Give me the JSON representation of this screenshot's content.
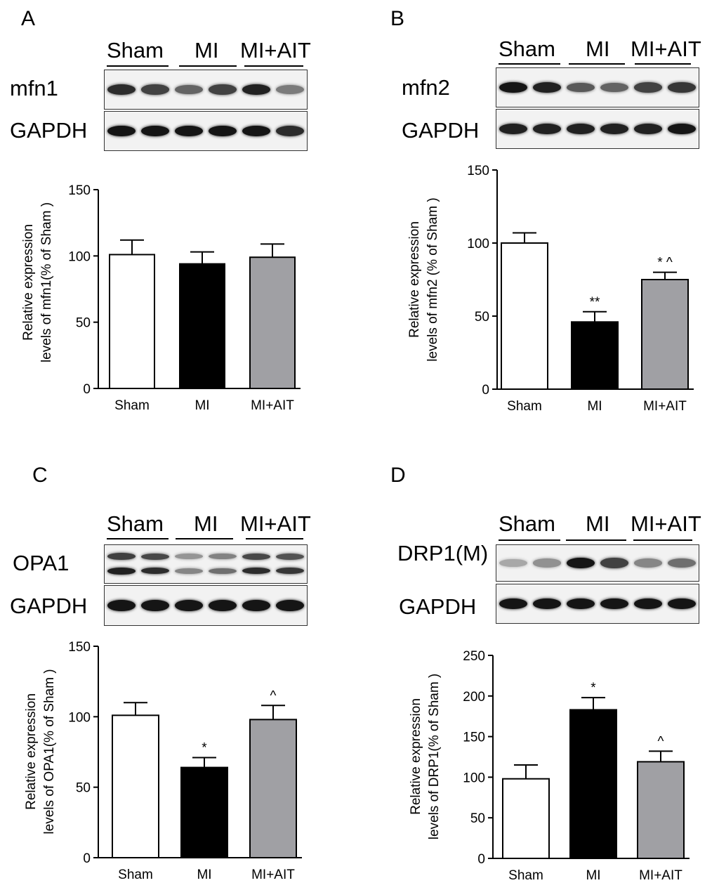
{
  "panels": [
    {
      "letter": "A",
      "groups": [
        "Sham",
        "MI",
        "MI+AIT"
      ],
      "blots": [
        {
          "label": "mfn1",
          "lanes": [
            0.85,
            0.75,
            0.6,
            0.75,
            0.9,
            0.5
          ]
        },
        {
          "label": "GAPDH",
          "lanes": [
            0.95,
            0.95,
            0.95,
            0.95,
            0.95,
            0.85
          ]
        }
      ]
    },
    {
      "letter": "B",
      "groups": [
        "Sham",
        "MI",
        "MI+AIT"
      ],
      "blots": [
        {
          "label": "mfn2",
          "lanes": [
            0.95,
            0.9,
            0.65,
            0.6,
            0.75,
            0.8
          ]
        },
        {
          "label": "GAPDH",
          "lanes": [
            0.9,
            0.9,
            0.9,
            0.9,
            0.9,
            0.95
          ]
        }
      ]
    },
    {
      "letter": "C",
      "groups": [
        "Sham",
        "MI",
        "MI+AIT"
      ],
      "blots": [
        {
          "label": "OPA1",
          "lanes": [
            0.9,
            0.85,
            0.45,
            0.55,
            0.85,
            0.8
          ]
        },
        {
          "label": "GAPDH",
          "lanes": [
            0.95,
            0.95,
            0.95,
            0.95,
            0.95,
            0.95
          ]
        }
      ]
    },
    {
      "letter": "D",
      "groups": [
        "Sham",
        "MI",
        "MI+AIT"
      ],
      "blots": [
        {
          "label": "DRP1(M)",
          "lanes": [
            0.3,
            0.4,
            0.95,
            0.75,
            0.45,
            0.55
          ]
        },
        {
          "label": "GAPDH",
          "lanes": [
            0.95,
            0.95,
            0.95,
            0.95,
            0.95,
            0.95
          ]
        }
      ]
    }
  ],
  "chart_data": [
    {
      "type": "bar",
      "categories": [
        "Sham",
        "MI",
        "MI+AIT"
      ],
      "values": [
        101,
        94,
        99
      ],
      "errors": [
        11,
        9,
        10
      ],
      "annotations": [
        "",
        "",
        ""
      ],
      "ylabel": [
        "Relative expression",
        "levels of mfn1(% of Sham )"
      ],
      "ylim": [
        0,
        150
      ],
      "yticks": [
        0,
        50,
        100,
        150
      ],
      "colors": [
        "#ffffff",
        "#000000",
        "#a0a0a4"
      ]
    },
    {
      "type": "bar",
      "categories": [
        "Sham",
        "MI",
        "MI+AIT"
      ],
      "values": [
        100,
        46,
        75
      ],
      "errors": [
        7,
        7,
        5
      ],
      "annotations": [
        "",
        "**",
        "* ^"
      ],
      "ylabel": [
        "Relative expression",
        "levels of mfn2 (% of Sham )"
      ],
      "ylim": [
        0,
        150
      ],
      "yticks": [
        0,
        50,
        100,
        150
      ],
      "colors": [
        "#ffffff",
        "#000000",
        "#a0a0a4"
      ]
    },
    {
      "type": "bar",
      "categories": [
        "Sham",
        "MI",
        "MI+AIT"
      ],
      "values": [
        101,
        64,
        98
      ],
      "errors": [
        9,
        7,
        10
      ],
      "annotations": [
        "",
        "*",
        "^"
      ],
      "ylabel": [
        "Relative expression",
        "levels of OPA1(% of Sham )"
      ],
      "ylim": [
        0,
        150
      ],
      "yticks": [
        0,
        50,
        100,
        150
      ],
      "colors": [
        "#ffffff",
        "#000000",
        "#a0a0a4"
      ]
    },
    {
      "type": "bar",
      "categories": [
        "Sham",
        "MI",
        "MI+AIT"
      ],
      "values": [
        98,
        183,
        119
      ],
      "errors": [
        17,
        15,
        13
      ],
      "annotations": [
        "",
        "*",
        "^"
      ],
      "ylabel": [
        "Relative expression",
        "levels of DRP1(% of Sham )"
      ],
      "ylim": [
        0,
        250
      ],
      "yticks": [
        0,
        50,
        100,
        150,
        200,
        250
      ],
      "colors": [
        "#ffffff",
        "#000000",
        "#a0a0a4"
      ]
    }
  ]
}
